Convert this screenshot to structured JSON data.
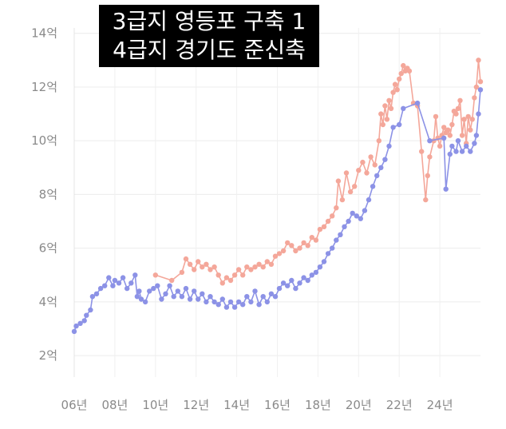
{
  "chart_data": {
    "type": "line",
    "title_lines": [
      "3급지 영등포 구축 1",
      "4급지 경기도 준신축"
    ],
    "x_ticks": [
      "06년",
      "08년",
      "10년",
      "12년",
      "14년",
      "16년",
      "18년",
      "20년",
      "22년",
      "24년"
    ],
    "y_ticks": [
      "2억",
      "4억",
      "6억",
      "8억",
      "10억",
      "12억",
      "14억"
    ],
    "xlim": [
      2006,
      2026
    ],
    "ylim": [
      1.2,
      14.2
    ],
    "grid": true,
    "series": [
      {
        "color": "#f4a79a",
        "points": [
          [
            2010.0,
            5.0
          ],
          [
            2010.8,
            4.8
          ],
          [
            2011.3,
            5.1
          ],
          [
            2011.5,
            5.6
          ],
          [
            2011.7,
            5.4
          ],
          [
            2011.9,
            5.2
          ],
          [
            2012.1,
            5.5
          ],
          [
            2012.3,
            5.3
          ],
          [
            2012.5,
            5.4
          ],
          [
            2012.7,
            5.2
          ],
          [
            2012.9,
            5.3
          ],
          [
            2013.1,
            5.0
          ],
          [
            2013.3,
            4.7
          ],
          [
            2013.5,
            4.9
          ],
          [
            2013.7,
            4.8
          ],
          [
            2013.9,
            5.0
          ],
          [
            2014.1,
            5.2
          ],
          [
            2014.3,
            5.0
          ],
          [
            2014.5,
            5.3
          ],
          [
            2014.7,
            5.2
          ],
          [
            2014.9,
            5.3
          ],
          [
            2015.1,
            5.4
          ],
          [
            2015.3,
            5.3
          ],
          [
            2015.5,
            5.5
          ],
          [
            2015.7,
            5.4
          ],
          [
            2015.9,
            5.7
          ],
          [
            2016.1,
            5.8
          ],
          [
            2016.3,
            5.9
          ],
          [
            2016.5,
            6.2
          ],
          [
            2016.7,
            6.1
          ],
          [
            2016.9,
            5.9
          ],
          [
            2017.1,
            6.0
          ],
          [
            2017.3,
            6.2
          ],
          [
            2017.5,
            6.1
          ],
          [
            2017.7,
            6.4
          ],
          [
            2017.9,
            6.3
          ],
          [
            2018.1,
            6.7
          ],
          [
            2018.3,
            6.8
          ],
          [
            2018.5,
            7.0
          ],
          [
            2018.7,
            7.2
          ],
          [
            2018.9,
            7.5
          ],
          [
            2019.0,
            8.5
          ],
          [
            2019.2,
            7.8
          ],
          [
            2019.4,
            8.8
          ],
          [
            2019.6,
            8.1
          ],
          [
            2019.8,
            8.3
          ],
          [
            2020.0,
            8.9
          ],
          [
            2020.2,
            9.2
          ],
          [
            2020.4,
            8.8
          ],
          [
            2020.6,
            9.4
          ],
          [
            2020.8,
            9.1
          ],
          [
            2021.0,
            10.0
          ],
          [
            2021.1,
            11.0
          ],
          [
            2021.2,
            10.6
          ],
          [
            2021.3,
            11.3
          ],
          [
            2021.4,
            10.8
          ],
          [
            2021.5,
            11.5
          ],
          [
            2021.6,
            11.2
          ],
          [
            2021.7,
            11.8
          ],
          [
            2021.8,
            12.1
          ],
          [
            2021.9,
            11.9
          ],
          [
            2022.0,
            12.3
          ],
          [
            2022.1,
            12.5
          ],
          [
            2022.2,
            12.8
          ],
          [
            2022.3,
            12.6
          ],
          [
            2022.4,
            12.7
          ],
          [
            2022.5,
            12.6
          ],
          [
            2022.7,
            11.4
          ],
          [
            2022.9,
            11.3
          ],
          [
            2023.1,
            9.6
          ],
          [
            2023.3,
            7.8
          ],
          [
            2023.4,
            8.7
          ],
          [
            2023.5,
            9.4
          ],
          [
            2023.7,
            10.0
          ],
          [
            2023.8,
            10.9
          ],
          [
            2023.9,
            10.1
          ],
          [
            2024.0,
            9.8
          ],
          [
            2024.1,
            10.2
          ],
          [
            2024.2,
            10.5
          ],
          [
            2024.3,
            10.3
          ],
          [
            2024.4,
            10.4
          ],
          [
            2024.5,
            10.2
          ],
          [
            2024.6,
            10.6
          ],
          [
            2024.7,
            11.1
          ],
          [
            2024.8,
            11.0
          ],
          [
            2024.9,
            11.2
          ],
          [
            2025.0,
            11.5
          ],
          [
            2025.1,
            10.2
          ],
          [
            2025.2,
            10.8
          ],
          [
            2025.3,
            9.9
          ],
          [
            2025.4,
            10.9
          ],
          [
            2025.5,
            10.4
          ],
          [
            2025.6,
            10.8
          ],
          [
            2025.7,
            11.6
          ],
          [
            2025.8,
            12.0
          ],
          [
            2025.9,
            13.0
          ],
          [
            2026.0,
            12.2
          ]
        ]
      },
      {
        "color": "#8c92e6",
        "points": [
          [
            2006.0,
            2.9
          ],
          [
            2006.1,
            3.1
          ],
          [
            2006.3,
            3.2
          ],
          [
            2006.5,
            3.3
          ],
          [
            2006.6,
            3.5
          ],
          [
            2006.8,
            3.7
          ],
          [
            2006.9,
            4.2
          ],
          [
            2007.1,
            4.3
          ],
          [
            2007.3,
            4.5
          ],
          [
            2007.5,
            4.6
          ],
          [
            2007.7,
            4.9
          ],
          [
            2007.9,
            4.6
          ],
          [
            2008.0,
            4.8
          ],
          [
            2008.2,
            4.7
          ],
          [
            2008.4,
            4.9
          ],
          [
            2008.6,
            4.5
          ],
          [
            2008.8,
            4.7
          ],
          [
            2009.0,
            5.0
          ],
          [
            2009.1,
            4.2
          ],
          [
            2009.2,
            4.4
          ],
          [
            2009.3,
            4.1
          ],
          [
            2009.5,
            4.0
          ],
          [
            2009.7,
            4.4
          ],
          [
            2009.9,
            4.5
          ],
          [
            2010.1,
            4.6
          ],
          [
            2010.3,
            4.1
          ],
          [
            2010.5,
            4.3
          ],
          [
            2010.7,
            4.6
          ],
          [
            2010.9,
            4.2
          ],
          [
            2011.1,
            4.4
          ],
          [
            2011.3,
            4.2
          ],
          [
            2011.5,
            4.5
          ],
          [
            2011.7,
            4.1
          ],
          [
            2011.9,
            4.4
          ],
          [
            2012.1,
            4.1
          ],
          [
            2012.3,
            4.3
          ],
          [
            2012.5,
            4.0
          ],
          [
            2012.7,
            4.2
          ],
          [
            2012.9,
            4.0
          ],
          [
            2013.1,
            3.9
          ],
          [
            2013.3,
            4.1
          ],
          [
            2013.5,
            3.8
          ],
          [
            2013.7,
            4.0
          ],
          [
            2013.9,
            3.8
          ],
          [
            2014.1,
            4.0
          ],
          [
            2014.3,
            3.9
          ],
          [
            2014.5,
            4.2
          ],
          [
            2014.7,
            4.0
          ],
          [
            2014.9,
            4.4
          ],
          [
            2015.1,
            3.9
          ],
          [
            2015.3,
            4.2
          ],
          [
            2015.5,
            4.0
          ],
          [
            2015.7,
            4.3
          ],
          [
            2015.9,
            4.2
          ],
          [
            2016.1,
            4.5
          ],
          [
            2016.3,
            4.7
          ],
          [
            2016.5,
            4.6
          ],
          [
            2016.7,
            4.8
          ],
          [
            2016.9,
            4.5
          ],
          [
            2017.1,
            4.7
          ],
          [
            2017.3,
            4.9
          ],
          [
            2017.5,
            4.8
          ],
          [
            2017.7,
            5.0
          ],
          [
            2017.9,
            5.1
          ],
          [
            2018.1,
            5.3
          ],
          [
            2018.3,
            5.5
          ],
          [
            2018.5,
            5.8
          ],
          [
            2018.7,
            6.0
          ],
          [
            2018.9,
            6.3
          ],
          [
            2019.1,
            6.5
          ],
          [
            2019.3,
            6.8
          ],
          [
            2019.5,
            7.0
          ],
          [
            2019.7,
            7.3
          ],
          [
            2019.9,
            7.2
          ],
          [
            2020.1,
            7.1
          ],
          [
            2020.3,
            7.4
          ],
          [
            2020.5,
            7.8
          ],
          [
            2020.7,
            8.3
          ],
          [
            2020.9,
            8.7
          ],
          [
            2021.1,
            9.0
          ],
          [
            2021.3,
            9.3
          ],
          [
            2021.5,
            9.8
          ],
          [
            2021.7,
            10.5
          ],
          [
            2022.0,
            10.6
          ],
          [
            2022.2,
            11.2
          ],
          [
            2022.9,
            11.4
          ],
          [
            2023.5,
            10.0
          ],
          [
            2024.2,
            10.1
          ],
          [
            2024.3,
            8.2
          ],
          [
            2024.5,
            9.5
          ],
          [
            2024.6,
            9.8
          ],
          [
            2024.8,
            9.6
          ],
          [
            2024.9,
            10.0
          ],
          [
            2025.1,
            9.6
          ],
          [
            2025.3,
            9.8
          ],
          [
            2025.5,
            9.6
          ],
          [
            2025.7,
            9.9
          ],
          [
            2025.8,
            10.2
          ],
          [
            2025.9,
            11.0
          ],
          [
            2026.0,
            11.9
          ]
        ]
      }
    ]
  }
}
